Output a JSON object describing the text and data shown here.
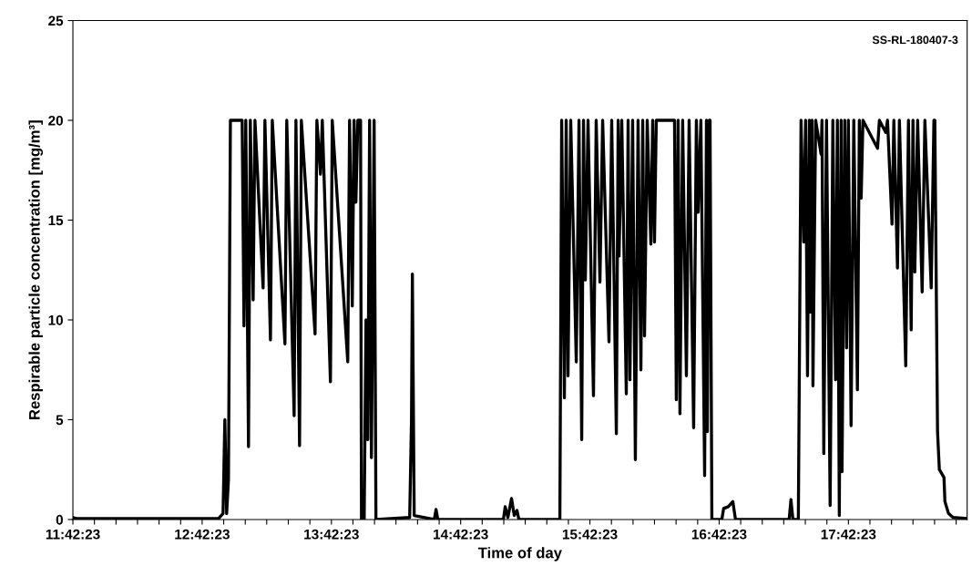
{
  "chart_data": {
    "type": "line",
    "xlabel": "Time of day",
    "ylabel": "Respirable particle concentration [mg/m³]",
    "annotations": [
      "SS-RL-180407-3"
    ],
    "xlim": [
      11.7064,
      18.625
    ],
    "ylim": [
      0,
      25
    ],
    "yticks": [
      0,
      5,
      10,
      15,
      20,
      25
    ],
    "xticks": [
      {
        "value": 11.7064,
        "label": "11:42:23"
      },
      {
        "value": 11.873,
        "label": null
      },
      {
        "value": 12.04,
        "label": null
      },
      {
        "value": 12.206,
        "label": null
      },
      {
        "value": 12.373,
        "label": null
      },
      {
        "value": 12.54,
        "label": null
      },
      {
        "value": 12.7064,
        "label": "12:42:23"
      },
      {
        "value": 12.873,
        "label": null
      },
      {
        "value": 13.04,
        "label": null
      },
      {
        "value": 13.206,
        "label": null
      },
      {
        "value": 13.373,
        "label": null
      },
      {
        "value": 13.54,
        "label": null
      },
      {
        "value": 13.7064,
        "label": "13:42:23"
      },
      {
        "value": 13.873,
        "label": null
      },
      {
        "value": 14.04,
        "label": null
      },
      {
        "value": 14.206,
        "label": null
      },
      {
        "value": 14.373,
        "label": null
      },
      {
        "value": 14.54,
        "label": null
      },
      {
        "value": 14.7064,
        "label": "14:42:23"
      },
      {
        "value": 14.873,
        "label": null
      },
      {
        "value": 15.04,
        "label": null
      },
      {
        "value": 15.206,
        "label": null
      },
      {
        "value": 15.373,
        "label": null
      },
      {
        "value": 15.54,
        "label": null
      },
      {
        "value": 15.7064,
        "label": "15:42:23"
      },
      {
        "value": 15.873,
        "label": null
      },
      {
        "value": 16.04,
        "label": null
      },
      {
        "value": 16.206,
        "label": null
      },
      {
        "value": 16.373,
        "label": null
      },
      {
        "value": 16.54,
        "label": null
      },
      {
        "value": 16.7064,
        "label": "16:42:23"
      },
      {
        "value": 16.873,
        "label": null
      },
      {
        "value": 17.04,
        "label": null
      },
      {
        "value": 17.206,
        "label": null
      },
      {
        "value": 17.373,
        "label": null
      },
      {
        "value": 17.54,
        "label": null
      },
      {
        "value": 17.7064,
        "label": "17:42:23"
      },
      {
        "value": 17.873,
        "label": null
      },
      {
        "value": 18.04,
        "label": null
      },
      {
        "value": 18.206,
        "label": null
      },
      {
        "value": 18.373,
        "label": null
      },
      {
        "value": 18.54,
        "label": null
      }
    ],
    "grid": false,
    "marker": "none",
    "line_style": "solid",
    "series": [
      {
        "color": "#000000",
        "x": [
          11.7064,
          11.734,
          12.833,
          12.868,
          12.882,
          12.896,
          12.91,
          12.925,
          13.016,
          13.03,
          13.044,
          13.065,
          13.079,
          13.101,
          13.115,
          13.178,
          13.192,
          13.235,
          13.249,
          13.347,
          13.361,
          13.418,
          13.432,
          13.46,
          13.474,
          13.58,
          13.594,
          13.622,
          13.636,
          13.699,
          13.713,
          13.833,
          13.847,
          13.868,
          13.882,
          13.896,
          13.911,
          13.932,
          13.939,
          13.96,
          13.974,
          13.988,
          14.002,
          14.016,
          14.037,
          14.051,
          14.312,
          14.326,
          14.333,
          14.347,
          14.502,
          14.516,
          14.53,
          15.037,
          15.051,
          15.072,
          15.1,
          15.121,
          15.142,
          15.157,
          15.474,
          15.488,
          15.509,
          15.523,
          15.537,
          15.558,
          15.601,
          15.622,
          15.643,
          15.657,
          15.671,
          15.692,
          15.734,
          15.755,
          15.784,
          15.805,
          15.854,
          15.875,
          15.911,
          15.925,
          15.932,
          15.953,
          15.988,
          16.002,
          16.016,
          16.037,
          16.058,
          16.079,
          16.101,
          16.115,
          16.129,
          16.15,
          16.178,
          16.192,
          16.206,
          16.22,
          16.361,
          16.375,
          16.389,
          16.403,
          16.424,
          16.453,
          16.474,
          16.509,
          16.53,
          16.544,
          16.565,
          16.594,
          16.608,
          16.615,
          16.629,
          16.636,
          16.65,
          16.727,
          16.741,
          16.777,
          16.812,
          16.833,
          17.248,
          17.262,
          17.277,
          17.319,
          17.34,
          17.361,
          17.375,
          17.39,
          17.404,
          17.411,
          17.425,
          17.432,
          17.453,
          17.495,
          17.502,
          17.516,
          17.537,
          17.565,
          17.586,
          17.607,
          17.621,
          17.636,
          17.65,
          17.657,
          17.678,
          17.692,
          17.706,
          17.727,
          17.748,
          17.776,
          17.791,
          17.805,
          17.819,
          17.932,
          17.946,
          17.995,
          18.009,
          18.044,
          18.058,
          18.086,
          18.101,
          18.15,
          18.171,
          18.192,
          18.206,
          18.22,
          18.242,
          18.277,
          18.298,
          18.347,
          18.368,
          18.375,
          18.396,
          18.41,
          18.446,
          18.453,
          18.481,
          18.516,
          18.622
        ],
        "values": [
          0.1,
          0.05,
          0.05,
          0.3,
          5.0,
          0.3,
          2,
          20,
          20,
          9.7,
          20,
          3.65,
          20,
          11.0,
          20,
          11.6,
          20,
          9.0,
          20,
          8.8,
          20,
          5.2,
          20,
          3.7,
          20,
          9.3,
          20,
          17.3,
          20,
          6.9,
          20,
          7.9,
          20,
          10.7,
          20,
          15.9,
          20,
          20,
          0,
          0,
          10,
          4.0,
          20,
          3.1,
          20,
          0,
          0.1,
          5,
          12.3,
          0.2,
          0,
          0.5,
          0,
          0,
          0.64,
          0.1,
          1.05,
          0.2,
          0.45,
          0,
          0,
          20,
          6.1,
          20,
          7.2,
          20,
          7.9,
          20,
          4.0,
          20,
          12.0,
          20,
          6.2,
          20,
          11.9,
          20,
          8.9,
          20,
          4.3,
          20,
          13.2,
          20,
          6.3,
          20,
          7.0,
          20,
          3.0,
          20,
          7.5,
          20,
          9.2,
          20,
          13.8,
          20,
          13.9,
          20,
          20,
          6.0,
          20,
          5.3,
          20,
          7.2,
          20,
          4.6,
          20,
          15.4,
          20,
          2.2,
          20,
          4.4,
          20,
          20,
          0,
          0,
          0.55,
          0.64,
          0.9,
          0,
          0,
          1.0,
          0,
          0,
          20,
          13.9,
          20,
          7.2,
          20,
          10.4,
          20,
          6.7,
          20,
          18.3,
          20,
          3.3,
          20,
          0.7,
          20,
          7.0,
          20,
          0.2,
          20,
          2.4,
          20,
          8.6,
          20,
          4.7,
          20,
          6.5,
          20,
          16.1,
          20,
          18.6,
          20,
          19.4,
          20,
          14.8,
          20,
          12.6,
          20,
          7.7,
          20,
          9.5,
          20,
          12.4,
          20,
          11.4,
          20,
          11.6,
          20,
          20,
          4.4,
          2.5,
          2.1,
          0.9,
          0.3,
          0.1,
          0.05
        ]
      }
    ]
  }
}
